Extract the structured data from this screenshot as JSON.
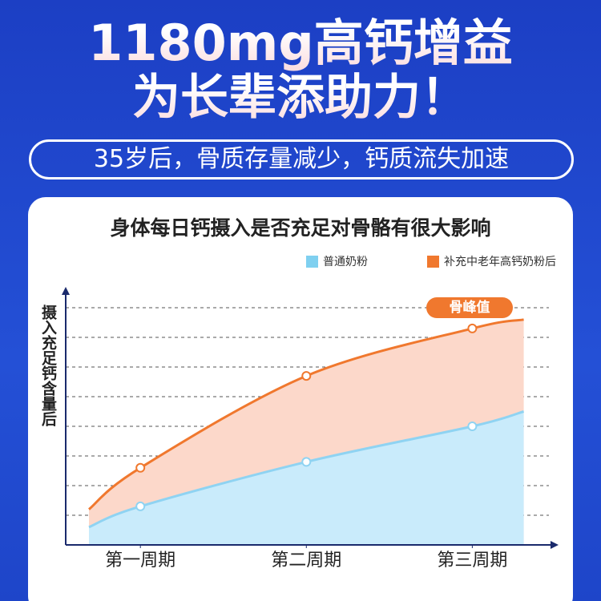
{
  "headline": [
    "1180mg高钙增益",
    "为长辈添助力！"
  ],
  "subtitle": "35岁后，骨质存量减少，钙质流失加速",
  "chart_data": {
    "type": "area",
    "title": "身体每日钙摄入是否充足对骨骼有很大影响",
    "y_label": "摄入充足钙含量后",
    "x": [
      0.69,
      1,
      2,
      3,
      3.31
    ],
    "xlim": [
      0.55,
      3.51
    ],
    "xticks": [
      {
        "value": 1,
        "label": "第一周期"
      },
      {
        "value": 2,
        "label": "第二周期"
      },
      {
        "value": 3,
        "label": "第三周期"
      }
    ],
    "ylim": [
      0,
      8
    ],
    "grid": true,
    "series": [
      {
        "name": "补充中老年高钙奶粉后",
        "color": "#f0782e",
        "fill": "#fcd8ca",
        "values": [
          1.2,
          2.6,
          5.7,
          7.3,
          7.6
        ]
      },
      {
        "name": "普通奶粉",
        "color": "#8fd3f2",
        "fill": "#c9ebfb",
        "values": [
          0.6,
          1.3,
          2.8,
          4.0,
          4.5
        ]
      }
    ],
    "annotation": "骨峰值"
  }
}
